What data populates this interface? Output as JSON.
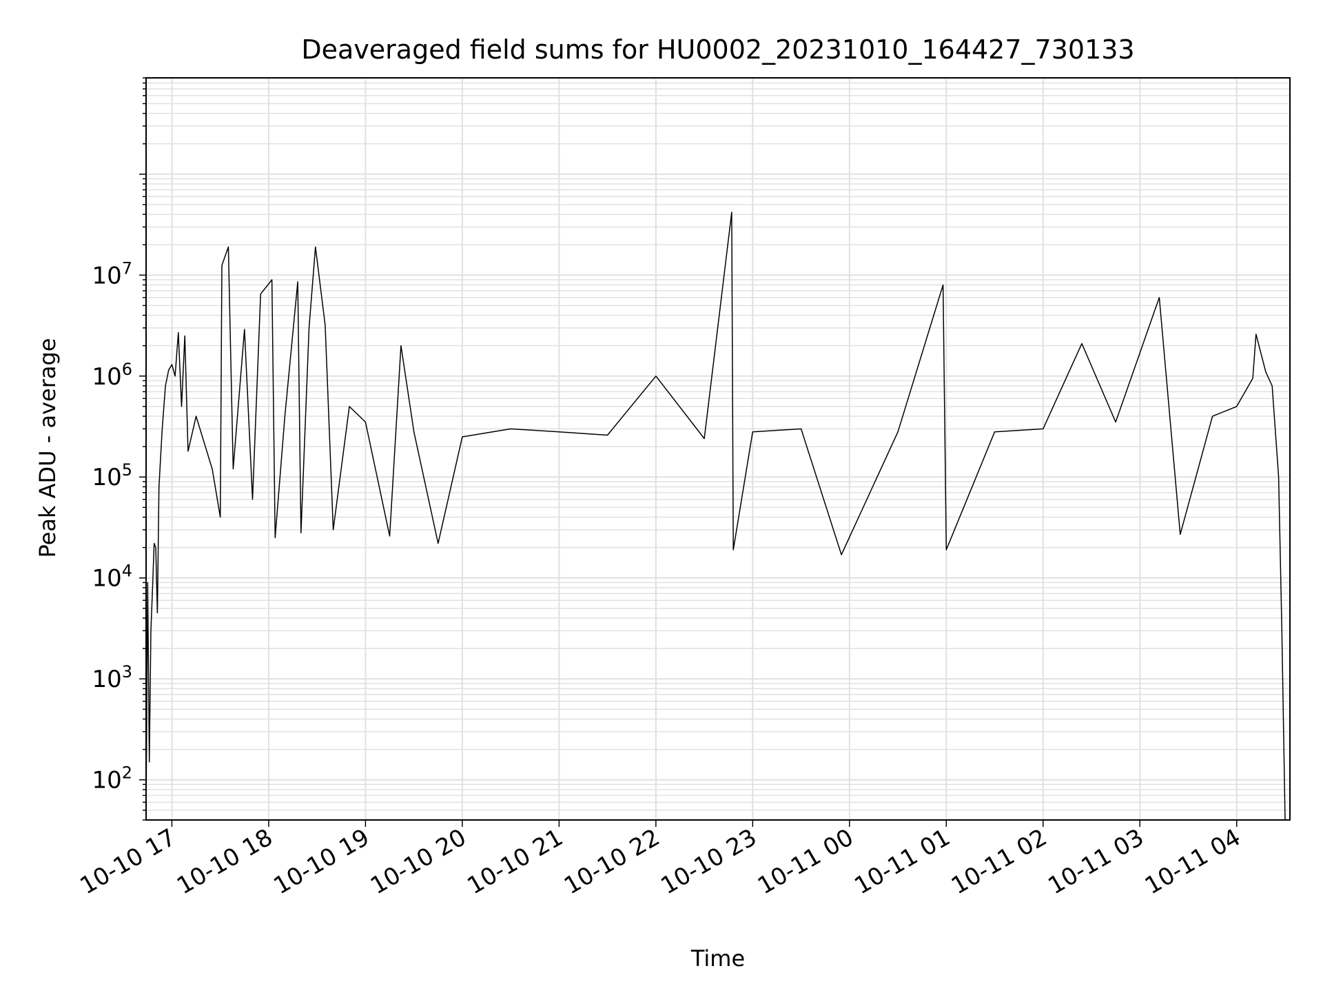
{
  "chart_data": {
    "type": "line",
    "title": "Deaveraged field sums for HU0002_20231010_164427_730133",
    "xlabel": "Time",
    "ylabel": "Peak ADU - average",
    "xlim": [
      "2023-10-10 16:44",
      "2023-10-11 04:33"
    ],
    "ylim": [
      40,
      900000000
    ],
    "yscale": "log",
    "grid": true,
    "line_color": "#000000",
    "grid_color": "#e0e0e0",
    "x_ticks": [
      {
        "value": "2023-10-10 17:00",
        "label": "10-10 17"
      },
      {
        "value": "2023-10-10 18:00",
        "label": "10-10 18"
      },
      {
        "value": "2023-10-10 19:00",
        "label": "10-10 19"
      },
      {
        "value": "2023-10-10 20:00",
        "label": "10-10 20"
      },
      {
        "value": "2023-10-10 21:00",
        "label": "10-10 21"
      },
      {
        "value": "2023-10-10 22:00",
        "label": "10-10 22"
      },
      {
        "value": "2023-10-10 23:00",
        "label": "10-10 23"
      },
      {
        "value": "2023-10-11 00:00",
        "label": "10-11 00"
      },
      {
        "value": "2023-10-11 01:00",
        "label": "10-11 01"
      },
      {
        "value": "2023-10-11 02:00",
        "label": "10-11 02"
      },
      {
        "value": "2023-10-11 03:00",
        "label": "10-11 03"
      },
      {
        "value": "2023-10-11 04:00",
        "label": "10-11 04"
      }
    ],
    "y_ticks": [
      {
        "value": 100,
        "base": "10",
        "exp": "2"
      },
      {
        "value": 1000,
        "base": "10",
        "exp": "3"
      },
      {
        "value": 10000,
        "base": "10",
        "exp": "4"
      },
      {
        "value": 100000,
        "base": "10",
        "exp": "5"
      },
      {
        "value": 1000000,
        "base": "10",
        "exp": "6"
      },
      {
        "value": 10000000,
        "base": "10",
        "exp": "7"
      }
    ],
    "series": [
      {
        "points": [
          [
            "2023-10-10 16:44",
            50
          ],
          [
            "2023-10-10 16:45",
            9000
          ],
          [
            "2023-10-10 16:46",
            150
          ],
          [
            "2023-10-10 16:47",
            3000
          ],
          [
            "2023-10-10 16:48",
            8000
          ],
          [
            "2023-10-10 16:49",
            22000
          ],
          [
            "2023-10-10 16:50",
            20000
          ],
          [
            "2023-10-10 16:51",
            4500
          ],
          [
            "2023-10-10 16:52",
            80000
          ],
          [
            "2023-10-10 16:54",
            300000
          ],
          [
            "2023-10-10 16:56",
            800000
          ],
          [
            "2023-10-10 16:58",
            1150000
          ],
          [
            "2023-10-10 17:00",
            1300000
          ],
          [
            "2023-10-10 17:02",
            1000000
          ],
          [
            "2023-10-10 17:04",
            2700000
          ],
          [
            "2023-10-10 17:06",
            500000
          ],
          [
            "2023-10-10 17:08",
            2500000
          ],
          [
            "2023-10-10 17:10",
            180000
          ],
          [
            "2023-10-10 17:15",
            400000
          ],
          [
            "2023-10-10 17:25",
            120000
          ],
          [
            "2023-10-10 17:30",
            40000
          ],
          [
            "2023-10-10 17:31",
            12500000
          ],
          [
            "2023-10-10 17:35",
            19000000
          ],
          [
            "2023-10-10 17:38",
            120000
          ],
          [
            "2023-10-10 17:45",
            2900000
          ],
          [
            "2023-10-10 17:50",
            60000
          ],
          [
            "2023-10-10 17:55",
            6500000
          ],
          [
            "2023-10-10 18:02",
            9000000
          ],
          [
            "2023-10-10 18:04",
            25000
          ],
          [
            "2023-10-10 18:10",
            400000
          ],
          [
            "2023-10-10 18:18",
            8600000
          ],
          [
            "2023-10-10 18:20",
            28000
          ],
          [
            "2023-10-10 18:25",
            3000000
          ],
          [
            "2023-10-10 18:29",
            19000000
          ],
          [
            "2023-10-10 18:35",
            3200000
          ],
          [
            "2023-10-10 18:40",
            30000
          ],
          [
            "2023-10-10 18:50",
            500000
          ],
          [
            "2023-10-10 19:00",
            350000
          ],
          [
            "2023-10-10 19:15",
            26000
          ],
          [
            "2023-10-10 19:22",
            2000000
          ],
          [
            "2023-10-10 19:30",
            280000
          ],
          [
            "2023-10-10 19:45",
            22000
          ],
          [
            "2023-10-10 20:00",
            250000
          ],
          [
            "2023-10-10 20:30",
            300000
          ],
          [
            "2023-10-10 21:00",
            280000
          ],
          [
            "2023-10-10 21:30",
            260000
          ],
          [
            "2023-10-10 22:00",
            1000000
          ],
          [
            "2023-10-10 22:30",
            240000
          ],
          [
            "2023-10-10 22:47",
            42000000
          ],
          [
            "2023-10-10 22:48",
            19000
          ],
          [
            "2023-10-10 23:00",
            280000
          ],
          [
            "2023-10-10 23:30",
            300000
          ],
          [
            "2023-10-10 23:55",
            17000
          ],
          [
            "2023-10-11 00:30",
            280000
          ],
          [
            "2023-10-11 00:58",
            8000000
          ],
          [
            "2023-10-11 01:00",
            19000
          ],
          [
            "2023-10-11 01:30",
            280000
          ],
          [
            "2023-10-11 02:00",
            300000
          ],
          [
            "2023-10-11 02:24",
            2100000
          ],
          [
            "2023-10-11 02:45",
            350000
          ],
          [
            "2023-10-11 03:12",
            6000000
          ],
          [
            "2023-10-11 03:25",
            27000
          ],
          [
            "2023-10-11 03:45",
            400000
          ],
          [
            "2023-10-11 04:00",
            500000
          ],
          [
            "2023-10-11 04:10",
            950000
          ],
          [
            "2023-10-11 04:12",
            2600000
          ],
          [
            "2023-10-11 04:18",
            1100000
          ],
          [
            "2023-10-11 04:22",
            800000
          ],
          [
            "2023-10-11 04:26",
            100000
          ],
          [
            "2023-10-11 04:28",
            3000
          ],
          [
            "2023-10-11 04:30",
            40
          ]
        ]
      }
    ]
  }
}
